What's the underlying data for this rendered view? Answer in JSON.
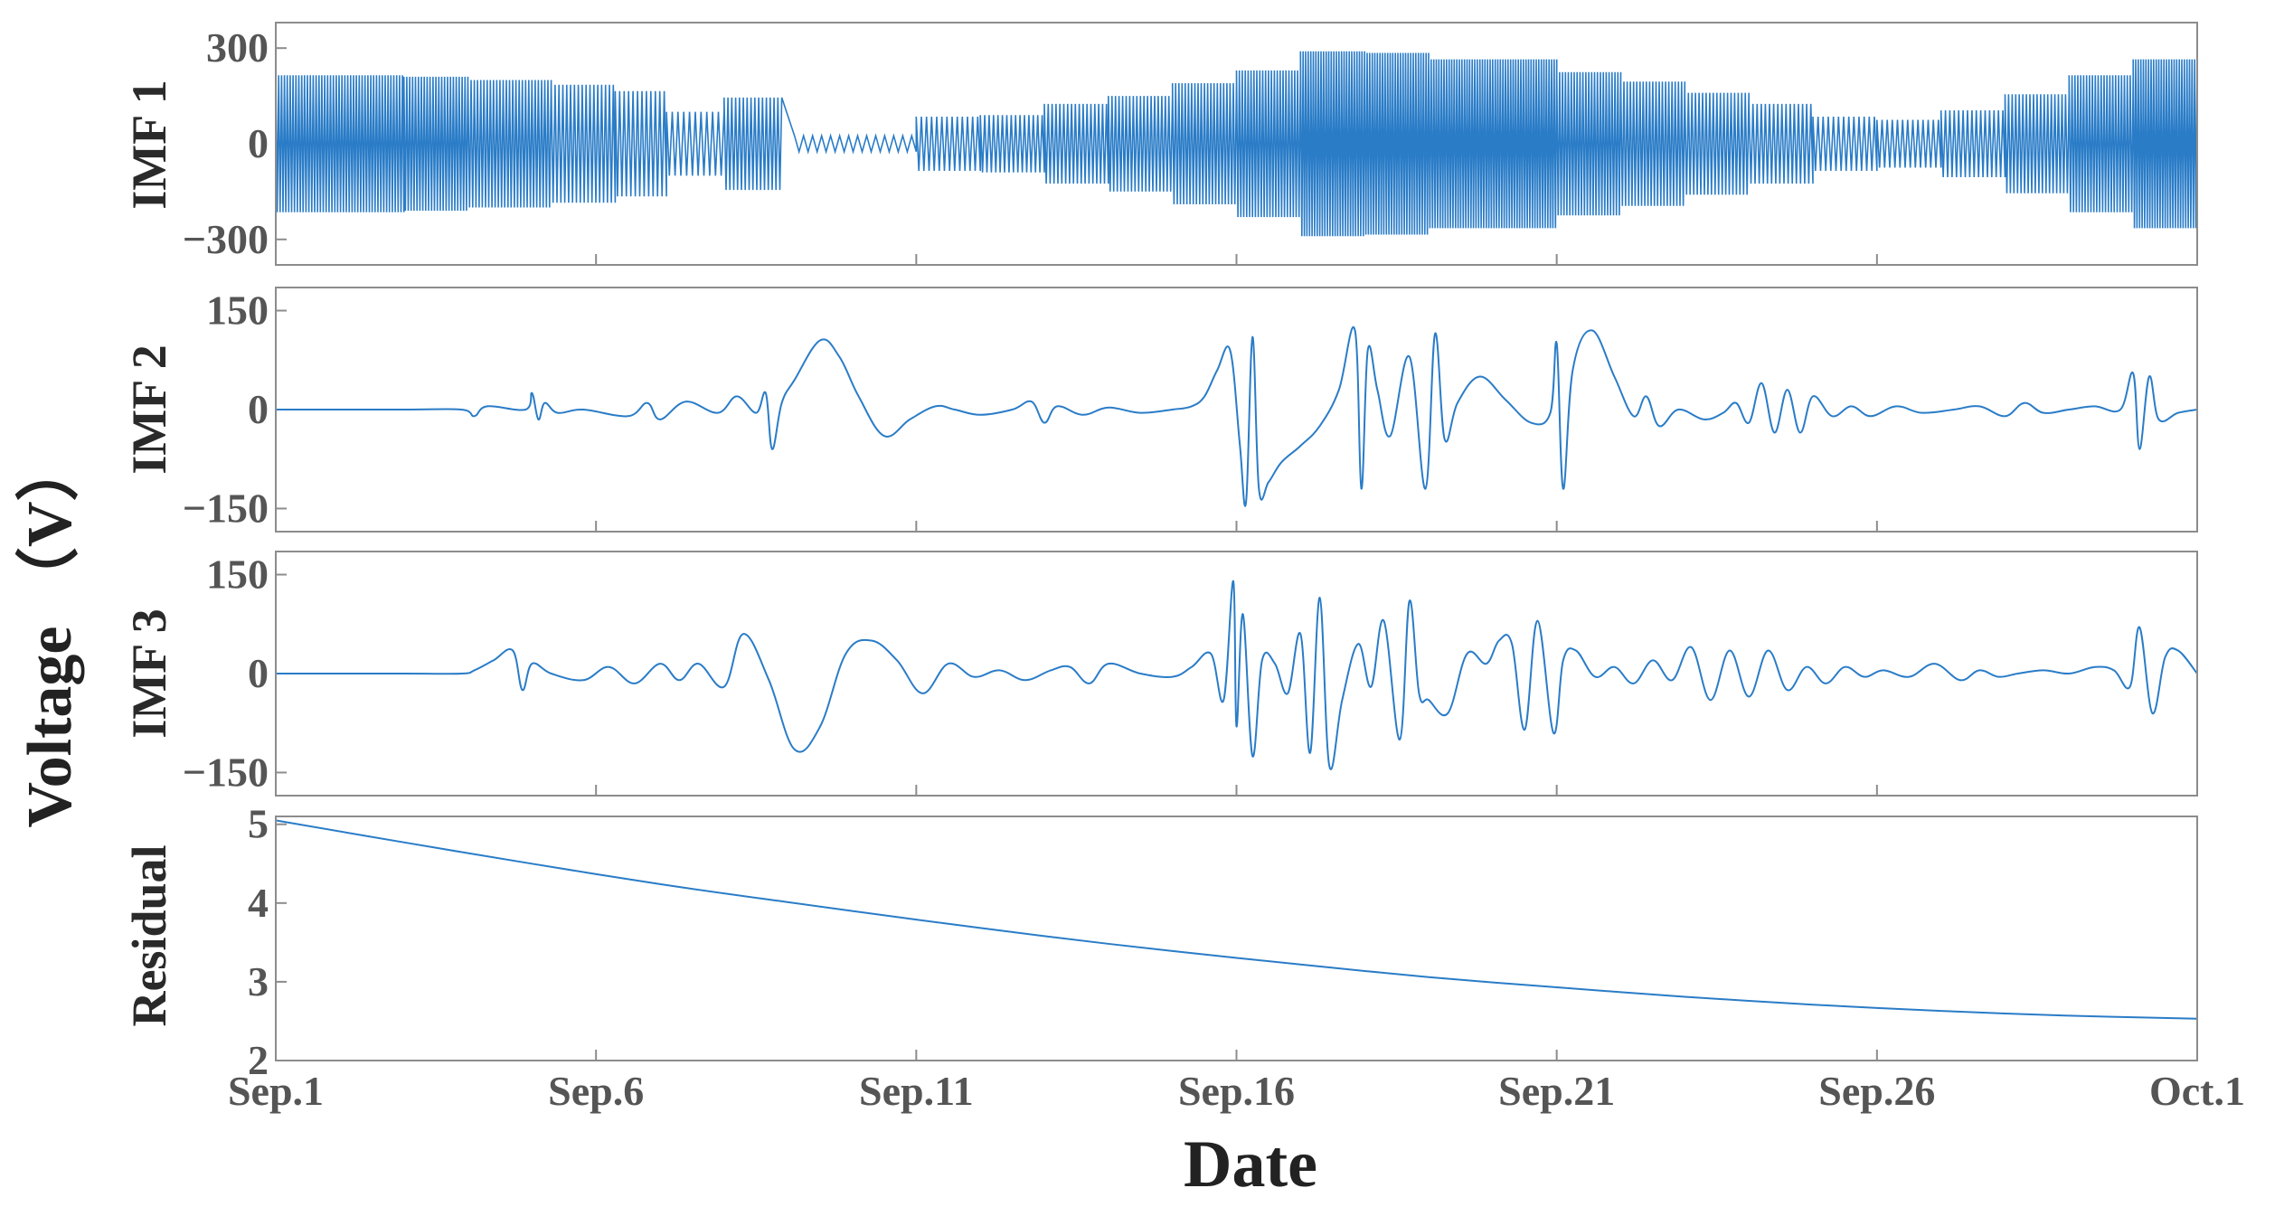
{
  "figure": {
    "ylabel": "Voltage （V）",
    "xlabel": "Date",
    "x_ticks": [
      "Sep.1",
      "Sep.6",
      "Sep.11",
      "Sep.16",
      "Sep.21",
      "Sep.26",
      "Oct.1"
    ],
    "colors": {
      "series": "#2a7cc7",
      "frame": "#8c8c8c",
      "text": "#555555"
    }
  },
  "chart_data": [
    {
      "type": "line",
      "panel": "IMF 1",
      "ylabel": "IMF 1",
      "ylim": [
        -380,
        380
      ],
      "yticks": [
        300,
        0,
        -300
      ],
      "xlim": [
        0,
        30
      ],
      "envelope_segments": [
        {
          "x0": 0.0,
          "x1": 2.0,
          "amp": 215,
          "period": 0.045
        },
        {
          "x0": 2.0,
          "x1": 3.0,
          "amp": 210,
          "period": 0.045
        },
        {
          "x0": 3.0,
          "x1": 4.3,
          "amp": 200,
          "period": 0.05
        },
        {
          "x0": 4.3,
          "x1": 5.3,
          "amp": 185,
          "period": 0.06
        },
        {
          "x0": 5.3,
          "x1": 6.1,
          "amp": 165,
          "period": 0.07
        },
        {
          "x0": 6.1,
          "x1": 7.0,
          "amp": 100,
          "period": 0.09
        },
        {
          "x0": 7.0,
          "x1": 7.9,
          "amp": 145,
          "period": 0.06
        },
        {
          "x0": 8.1,
          "x1": 10.0,
          "amp": 25,
          "period": 0.14
        },
        {
          "x0": 10.0,
          "x1": 11.0,
          "amp": 85,
          "period": 0.08
        },
        {
          "x0": 11.0,
          "x1": 12.0,
          "amp": 90,
          "period": 0.07
        },
        {
          "x0": 12.0,
          "x1": 13.0,
          "amp": 125,
          "period": 0.06
        },
        {
          "x0": 13.0,
          "x1": 14.0,
          "amp": 150,
          "period": 0.055
        },
        {
          "x0": 14.0,
          "x1": 15.0,
          "amp": 190,
          "period": 0.05
        },
        {
          "x0": 15.0,
          "x1": 16.0,
          "amp": 230,
          "period": 0.045
        },
        {
          "x0": 16.0,
          "x1": 17.0,
          "amp": 290,
          "period": 0.04
        },
        {
          "x0": 17.0,
          "x1": 18.0,
          "amp": 285,
          "period": 0.04
        },
        {
          "x0": 18.0,
          "x1": 20.0,
          "amp": 265,
          "period": 0.04
        },
        {
          "x0": 20.0,
          "x1": 21.0,
          "amp": 225,
          "period": 0.045
        },
        {
          "x0": 21.0,
          "x1": 22.0,
          "amp": 195,
          "period": 0.05
        },
        {
          "x0": 22.0,
          "x1": 23.0,
          "amp": 160,
          "period": 0.055
        },
        {
          "x0": 23.0,
          "x1": 24.0,
          "amp": 125,
          "period": 0.065
        },
        {
          "x0": 24.0,
          "x1": 25.0,
          "amp": 85,
          "period": 0.08
        },
        {
          "x0": 25.0,
          "x1": 26.0,
          "amp": 75,
          "period": 0.08
        },
        {
          "x0": 26.0,
          "x1": 27.0,
          "amp": 105,
          "period": 0.07
        },
        {
          "x0": 27.0,
          "x1": 28.0,
          "amp": 155,
          "period": 0.055
        },
        {
          "x0": 28.0,
          "x1": 29.0,
          "amp": 215,
          "period": 0.045
        },
        {
          "x0": 29.0,
          "x1": 30.0,
          "amp": 265,
          "period": 0.04
        }
      ]
    },
    {
      "type": "line",
      "panel": "IMF 2",
      "ylabel": "IMF 2",
      "ylim": [
        -185,
        185
      ],
      "yticks": [
        150,
        0,
        -150
      ],
      "xlim": [
        0,
        30
      ],
      "x": [
        0,
        2.0,
        2.9,
        3.1,
        3.3,
        3.9,
        4.0,
        4.1,
        4.2,
        4.4,
        4.8,
        5.5,
        5.8,
        6.0,
        6.4,
        6.9,
        7.2,
        7.5,
        7.65,
        7.75,
        7.9,
        8.1,
        8.5,
        8.8,
        9.1,
        9.5,
        9.9,
        10.3,
        10.6,
        11.0,
        11.5,
        11.8,
        12.0,
        12.2,
        12.6,
        13.0,
        13.5,
        14.0,
        14.3,
        14.5,
        14.7,
        14.9,
        15.05,
        15.15,
        15.25,
        15.35,
        15.5,
        15.7,
        16.0,
        16.3,
        16.6,
        16.85,
        16.95,
        17.05,
        17.2,
        17.4,
        17.7,
        17.95,
        18.1,
        18.25,
        18.45,
        18.8,
        19.2,
        19.6,
        19.9,
        20.0,
        20.1,
        20.25,
        20.55,
        20.9,
        21.2,
        21.4,
        21.6,
        21.9,
        22.3,
        22.6,
        22.8,
        23.0,
        23.2,
        23.4,
        23.6,
        23.8,
        24.0,
        24.3,
        24.6,
        24.9,
        25.3,
        25.7,
        26.2,
        26.6,
        27.0,
        27.3,
        27.6,
        28.0,
        28.4,
        28.8,
        29.0,
        29.1,
        29.25,
        29.4,
        29.7,
        30.0
      ],
      "y": [
        0,
        0,
        0,
        -10,
        5,
        0,
        25,
        -15,
        10,
        -5,
        0,
        -10,
        10,
        -15,
        12,
        -5,
        20,
        -5,
        25,
        -60,
        10,
        45,
        105,
        80,
        20,
        -40,
        -15,
        5,
        0,
        -8,
        0,
        12,
        -20,
        5,
        -8,
        3,
        -5,
        0,
        5,
        20,
        60,
        90,
        -50,
        -140,
        110,
        -120,
        -110,
        -80,
        -55,
        -25,
        30,
        120,
        -120,
        90,
        30,
        -40,
        80,
        -120,
        115,
        -45,
        10,
        50,
        15,
        -20,
        -5,
        100,
        -120,
        60,
        120,
        50,
        -10,
        20,
        -25,
        0,
        -15,
        -5,
        10,
        -20,
        40,
        -35,
        30,
        -35,
        20,
        -10,
        5,
        -10,
        5,
        -5,
        0,
        5,
        -10,
        10,
        -5,
        0,
        5,
        0,
        55,
        -60,
        50,
        -15,
        -5,
        0
      ]
    },
    {
      "type": "line",
      "panel": "IMF 3",
      "ylabel": "IMF 3",
      "ylim": [
        -185,
        185
      ],
      "yticks": [
        150,
        0,
        -150
      ],
      "xlim": [
        0,
        30
      ],
      "x": [
        0,
        2.0,
        2.9,
        3.1,
        3.4,
        3.7,
        3.85,
        4.0,
        4.3,
        4.8,
        5.2,
        5.6,
        6.0,
        6.3,
        6.6,
        7.0,
        7.3,
        7.7,
        8.1,
        8.5,
        8.9,
        9.3,
        9.7,
        10.1,
        10.5,
        10.9,
        11.3,
        11.7,
        12.1,
        12.4,
        12.7,
        13.0,
        13.5,
        14.0,
        14.3,
        14.6,
        14.8,
        14.95,
        15.0,
        15.1,
        15.25,
        15.4,
        15.6,
        15.8,
        16.0,
        16.15,
        16.3,
        16.45,
        16.65,
        16.9,
        17.1,
        17.3,
        17.55,
        17.7,
        17.85,
        18.0,
        18.3,
        18.6,
        18.9,
        19.1,
        19.3,
        19.5,
        19.7,
        19.95,
        20.1,
        20.3,
        20.6,
        20.9,
        21.2,
        21.5,
        21.8,
        22.1,
        22.4,
        22.7,
        23.0,
        23.3,
        23.6,
        23.9,
        24.2,
        24.5,
        24.8,
        25.1,
        25.5,
        25.9,
        26.3,
        26.6,
        26.9,
        27.2,
        27.6,
        28.0,
        28.4,
        28.7,
        28.95,
        29.1,
        29.3,
        29.5,
        29.7,
        30.0
      ],
      "y": [
        0,
        0,
        0,
        5,
        20,
        35,
        -25,
        15,
        0,
        -10,
        10,
        -15,
        15,
        -10,
        15,
        -20,
        60,
        -10,
        -115,
        -80,
        30,
        50,
        20,
        -30,
        15,
        -5,
        5,
        -10,
        5,
        10,
        -15,
        15,
        0,
        -5,
        10,
        30,
        -40,
        140,
        -80,
        90,
        -125,
        20,
        15,
        -30,
        60,
        -120,
        115,
        -140,
        -40,
        45,
        -20,
        80,
        -100,
        110,
        -30,
        -40,
        -60,
        30,
        15,
        50,
        45,
        -85,
        80,
        -90,
        20,
        35,
        -5,
        10,
        -15,
        20,
        -10,
        40,
        -40,
        35,
        -35,
        35,
        -25,
        10,
        -15,
        10,
        -5,
        5,
        -5,
        15,
        -10,
        5,
        -5,
        0,
        5,
        0,
        10,
        5,
        -20,
        70,
        -60,
        25,
        35,
        0
      ]
    },
    {
      "type": "line",
      "panel": "Residual",
      "ylabel": "Residual",
      "ylim": [
        2,
        5.1
      ],
      "yticks": [
        5,
        4,
        3,
        2
      ],
      "xlim": [
        0,
        30
      ],
      "x": [
        0,
        2,
        4,
        6,
        8,
        10,
        12,
        14,
        16,
        18,
        20,
        22,
        24,
        26,
        28,
        30
      ],
      "y": [
        5.05,
        4.77,
        4.5,
        4.24,
        4.01,
        3.79,
        3.58,
        3.39,
        3.22,
        3.06,
        2.93,
        2.81,
        2.71,
        2.63,
        2.57,
        2.53
      ]
    }
  ]
}
